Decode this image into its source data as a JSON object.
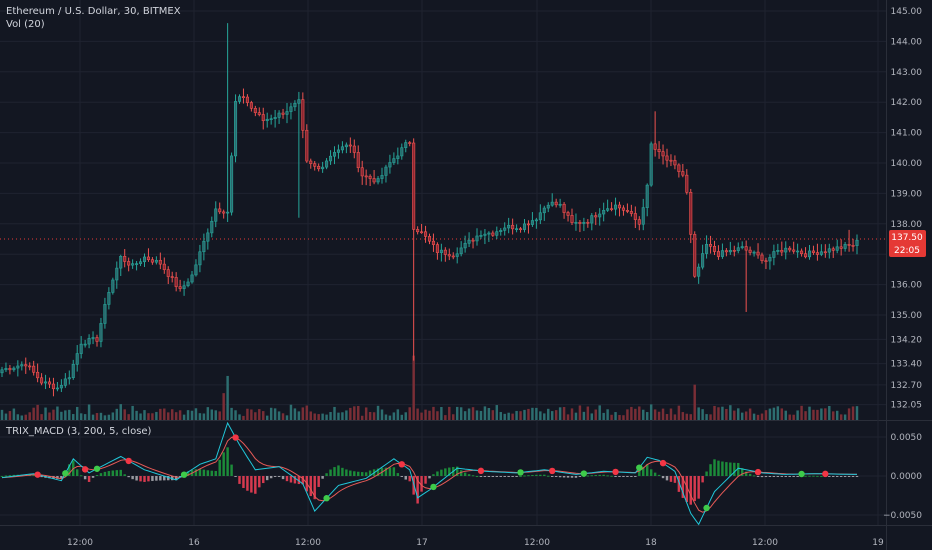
{
  "header": {
    "symbol": "Ethereum / U.S. Dollar, 30, BITMEX",
    "volume_label": "Vol (20)",
    "indicator_label": "TRIX_MACD (3, 200, 5, close)"
  },
  "price_badges": {
    "price": "137.50",
    "timer": "22:05"
  },
  "colors": {
    "background": "#131722",
    "grid": "#1f2330",
    "text": "#b2b5be",
    "up": "#26a69a",
    "down": "#ef5350",
    "up_dark": "#2a6b6f",
    "down_dark": "#8b2631",
    "vol_up": "#2d6e70",
    "vol_down": "#7a2e36",
    "trix": "#21c7d9",
    "signal": "#e65a57",
    "dot_green": "#3ecb4a",
    "dot_red": "#f23645",
    "hist_pos": "#1c8c3a",
    "hist_neg": "#d63a4f",
    "hist_gray": "#999aa1",
    "badge": "#e53935"
  },
  "chart_data": {
    "type": "candlestick",
    "title": "Ethereum / U.S. Dollar, 30, BITMEX",
    "price_axis": {
      "ticks": [
        "145.00",
        "144.00",
        "143.00",
        "142.00",
        "141.00",
        "140.00",
        "139.00",
        "138.00",
        "137.00",
        "136.00",
        "135.00",
        "134.20",
        "133.40",
        "132.70",
        "132.05"
      ],
      "range": [
        131.8,
        145.3
      ]
    },
    "indicator_axis": {
      "ticks": [
        "0.0050",
        "0.0000",
        "−0.0050"
      ],
      "range": [
        -0.0068,
        0.0072
      ]
    },
    "time_axis": {
      "labels": [
        "12:00",
        "16",
        "12:00",
        "17",
        "12:00",
        "18",
        "12:00",
        "19"
      ]
    },
    "last_price": 137.5,
    "anchors": [
      [
        0,
        133.2
      ],
      [
        6,
        133.4
      ],
      [
        10,
        132.8
      ],
      [
        14,
        132.6
      ],
      [
        17,
        133.0
      ],
      [
        20,
        134.1
      ],
      [
        24,
        134.2
      ],
      [
        27,
        135.8
      ],
      [
        30,
        136.9
      ],
      [
        33,
        136.6
      ],
      [
        36,
        136.9
      ],
      [
        40,
        136.7
      ],
      [
        45,
        135.8
      ],
      [
        48,
        136.3
      ],
      [
        51,
        137.4
      ],
      [
        54,
        138.5
      ],
      [
        57,
        138.4
      ],
      [
        59,
        142.0
      ],
      [
        61,
        142.2
      ],
      [
        63,
        141.8
      ],
      [
        66,
        141.4
      ],
      [
        70,
        141.6
      ],
      [
        73,
        141.8
      ],
      [
        75,
        142.0
      ],
      [
        77,
        140.0
      ],
      [
        80,
        139.8
      ],
      [
        84,
        140.4
      ],
      [
        88,
        140.6
      ],
      [
        91,
        139.6
      ],
      [
        95,
        139.4
      ],
      [
        98,
        140.0
      ],
      [
        102,
        140.6
      ],
      [
        103,
        140.7
      ],
      [
        104,
        137.9
      ],
      [
        106,
        137.7
      ],
      [
        110,
        137.1
      ],
      [
        114,
        137.0
      ],
      [
        118,
        137.4
      ],
      [
        121,
        137.7
      ],
      [
        124,
        137.7
      ],
      [
        127,
        137.9
      ],
      [
        131,
        137.9
      ],
      [
        135,
        138.2
      ],
      [
        138,
        138.7
      ],
      [
        141,
        138.6
      ],
      [
        144,
        138.0
      ],
      [
        148,
        138.1
      ],
      [
        152,
        138.5
      ],
      [
        155,
        138.6
      ],
      [
        158,
        138.4
      ],
      [
        161,
        138.0
      ],
      [
        163,
        139.2
      ],
      [
        164,
        140.6
      ],
      [
        166,
        140.3
      ],
      [
        169,
        140.0
      ],
      [
        172,
        139.6
      ],
      [
        173,
        139.0
      ],
      [
        175,
        136.2
      ],
      [
        178,
        137.3
      ],
      [
        181,
        137.0
      ],
      [
        184,
        137.1
      ],
      [
        187,
        137.2
      ],
      [
        190,
        137.0
      ],
      [
        193,
        136.8
      ],
      [
        196,
        137.1
      ],
      [
        199,
        137.2
      ],
      [
        203,
        137.0
      ],
      [
        207,
        137.1
      ],
      [
        211,
        137.2
      ],
      [
        215,
        137.3
      ],
      [
        216,
        137.4
      ]
    ],
    "notable_wicks": [
      {
        "at": 57,
        "high": 144.6
      },
      {
        "at": 75,
        "low": 138.2
      },
      {
        "at": 104,
        "low": 133.5
      },
      {
        "at": 165,
        "high": 141.7
      },
      {
        "at": 188,
        "low": 135.1
      },
      {
        "at": 214,
        "high": 137.8
      }
    ],
    "volume_spikes": [
      {
        "at": 56,
        "scale": 3.0
      },
      {
        "at": 57,
        "scale": 4.2
      },
      {
        "at": 104,
        "scale": 5.6
      },
      {
        "at": 164,
        "scale": 1.8
      },
      {
        "at": 175,
        "scale": 3.3
      }
    ],
    "indicator_anchors": [
      [
        0,
        -0.0002
      ],
      [
        8,
        0.0003
      ],
      [
        15,
        -0.0006
      ],
      [
        18,
        0.0022
      ],
      [
        22,
        0.0004
      ],
      [
        30,
        0.0025
      ],
      [
        36,
        0.0008
      ],
      [
        44,
        -0.0005
      ],
      [
        50,
        0.0015
      ],
      [
        54,
        0.0022
      ],
      [
        57,
        0.0068
      ],
      [
        60,
        0.004
      ],
      [
        64,
        0.0008
      ],
      [
        70,
        0.0012
      ],
      [
        76,
        -0.001
      ],
      [
        79,
        -0.0045
      ],
      [
        85,
        -0.0012
      ],
      [
        92,
        -0.0003
      ],
      [
        99,
        0.0022
      ],
      [
        103,
        0.0008
      ],
      [
        105,
        -0.0028
      ],
      [
        108,
        -0.0018
      ],
      [
        115,
        0.001
      ],
      [
        122,
        0.0006
      ],
      [
        130,
        0.0004
      ],
      [
        137,
        0.0008
      ],
      [
        145,
        0.0002
      ],
      [
        152,
        0.0006
      ],
      [
        160,
        0.0004
      ],
      [
        163,
        0.0024
      ],
      [
        166,
        0.002
      ],
      [
        170,
        0.0006
      ],
      [
        174,
        -0.0048
      ],
      [
        176,
        -0.0062
      ],
      [
        180,
        -0.002
      ],
      [
        186,
        0.001
      ],
      [
        192,
        0.0004
      ],
      [
        198,
        0.0002
      ],
      [
        205,
        0.0003
      ],
      [
        216,
        0.0002
      ]
    ]
  }
}
